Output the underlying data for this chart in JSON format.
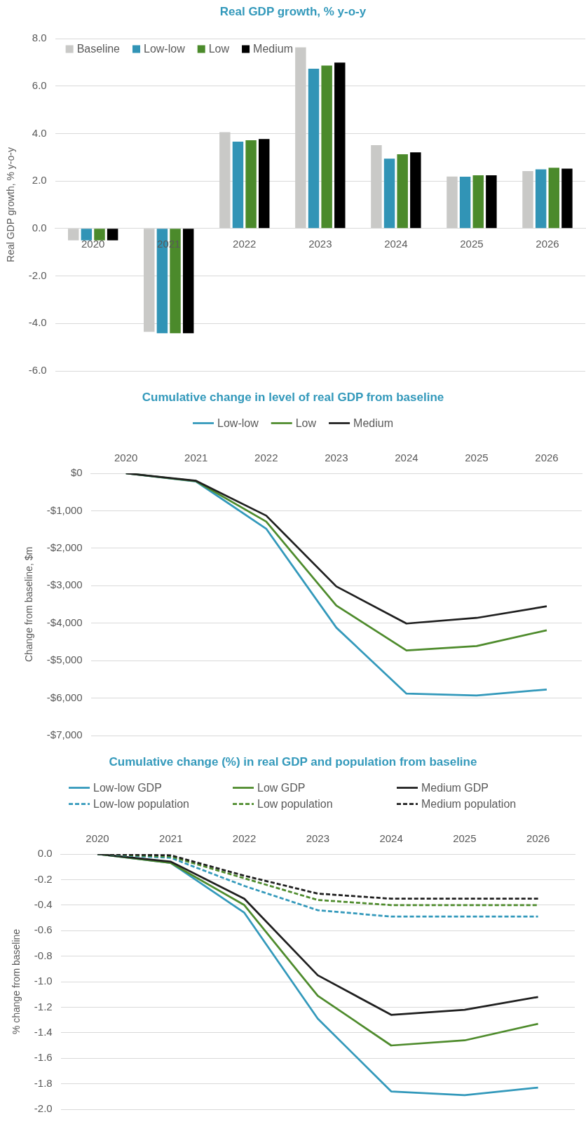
{
  "chart_data": [
    {
      "type": "bar",
      "title": "Real GDP growth, % y-o-y",
      "ylabel": "Real GDP growth, % y-o-y",
      "categories": [
        "2020",
        "2021",
        "2022",
        "2023",
        "2024",
        "2025",
        "2026"
      ],
      "series": [
        {
          "name": "Baseline",
          "color": "#c9c9c7",
          "values": [
            -0.5,
            -4.35,
            4.06,
            7.63,
            3.51,
            2.19,
            2.42
          ]
        },
        {
          "name": "Low-low",
          "color": "#3194b6",
          "values": [
            -0.5,
            -4.41,
            3.66,
            6.73,
            2.94,
            2.18,
            2.49
          ]
        },
        {
          "name": "Low",
          "color": "#4b8a2b",
          "values": [
            -0.5,
            -4.41,
            3.72,
            6.86,
            3.13,
            2.24,
            2.56
          ]
        },
        {
          "name": "Medium",
          "color": "#000000",
          "values": [
            -0.5,
            -4.41,
            3.77,
            6.99,
            3.21,
            2.24,
            2.52
          ]
        }
      ],
      "ylim": [
        -6,
        8
      ],
      "yticks": [
        {
          "value": -6,
          "label": "-6.0"
        },
        {
          "value": -4,
          "label": "-4.0"
        },
        {
          "value": -2,
          "label": "-2.0"
        },
        {
          "value": 0,
          "label": "0.0"
        },
        {
          "value": 2,
          "label": "2.0"
        },
        {
          "value": 4,
          "label": "4.0"
        },
        {
          "value": 6,
          "label": "6.0"
        },
        {
          "value": 8,
          "label": "8.0"
        }
      ],
      "grid": "y",
      "legend": "top left"
    },
    {
      "type": "line",
      "title": "Cumulative change in level of real GDP from baseline",
      "ylabel": "Change from baseline, $m",
      "categories": [
        "2020",
        "2021",
        "2022",
        "2023",
        "2024",
        "2025",
        "2026"
      ],
      "series": [
        {
          "name": "Low-low",
          "color": "#3399bb",
          "values": [
            0,
            -220,
            -1480,
            -4120,
            -5880,
            -5930,
            -5770
          ]
        },
        {
          "name": "Low",
          "color": "#4e8b2c",
          "values": [
            0,
            -210,
            -1290,
            -3530,
            -4730,
            -4610,
            -4190
          ]
        },
        {
          "name": "Medium",
          "color": "#1f1f1f",
          "values": [
            0,
            -200,
            -1130,
            -3020,
            -4010,
            -3860,
            -3550
          ]
        }
      ],
      "ylim": [
        -7000,
        0
      ],
      "yticks": [
        {
          "value": -7000,
          "label": "-$7,000"
        },
        {
          "value": -6000,
          "label": "-$6,000"
        },
        {
          "value": -5000,
          "label": "-$5,000"
        },
        {
          "value": -4000,
          "label": "-$4,000"
        },
        {
          "value": -3000,
          "label": "-$3,000"
        },
        {
          "value": -2000,
          "label": "-$2,000"
        },
        {
          "value": -1000,
          "label": "-$1,000"
        },
        {
          "value": 0,
          "label": "$0"
        }
      ],
      "grid": "y",
      "legend": "top",
      "marker": "none"
    },
    {
      "type": "line",
      "title": "Cumulative change (%) in real GDP and population from baseline",
      "ylabel": "% change from baseline",
      "categories": [
        "2020",
        "2021",
        "2022",
        "2023",
        "2024",
        "2025",
        "2026"
      ],
      "series": [
        {
          "name": "Low-low GDP",
          "color": "#3399bb",
          "values": [
            0,
            -0.07,
            -0.46,
            -1.29,
            -1.86,
            -1.89,
            -1.83
          ]
        },
        {
          "name": "Low GDP",
          "color": "#4e8b2c",
          "values": [
            0,
            -0.07,
            -0.4,
            -1.11,
            -1.5,
            -1.46,
            -1.33
          ]
        },
        {
          "name": "Medium GDP",
          "color": "#1f1f1f",
          "values": [
            0,
            -0.06,
            -0.35,
            -0.95,
            -1.26,
            -1.22,
            -1.12
          ]
        },
        {
          "name": "Low-low population",
          "color": "#3399bb",
          "line_style": "dashed",
          "values": [
            0,
            -0.03,
            -0.25,
            -0.44,
            -0.49,
            -0.49,
            -0.49
          ]
        },
        {
          "name": "Low population",
          "color": "#4e8b2c",
          "line_style": "dashed",
          "values": [
            0,
            -0.02,
            -0.19,
            -0.36,
            -0.4,
            -0.4,
            -0.4
          ]
        },
        {
          "name": "Medium population",
          "color": "#1f1f1f",
          "line_style": "dashed",
          "values": [
            0,
            -0.01,
            -0.17,
            -0.31,
            -0.35,
            -0.35,
            -0.35
          ]
        }
      ],
      "ylim": [
        -2,
        0
      ],
      "yticks": [
        {
          "value": -2,
          "label": "-2.0"
        },
        -1.8,
        -1.6,
        -1.4,
        -1.2,
        {
          "value": -1,
          "label": "-1.0"
        },
        -0.8,
        -0.6,
        -0.4,
        -0.2,
        {
          "value": 0,
          "label": "0.0"
        }
      ],
      "grid": "y",
      "legend": "top",
      "marker": "none"
    }
  ]
}
